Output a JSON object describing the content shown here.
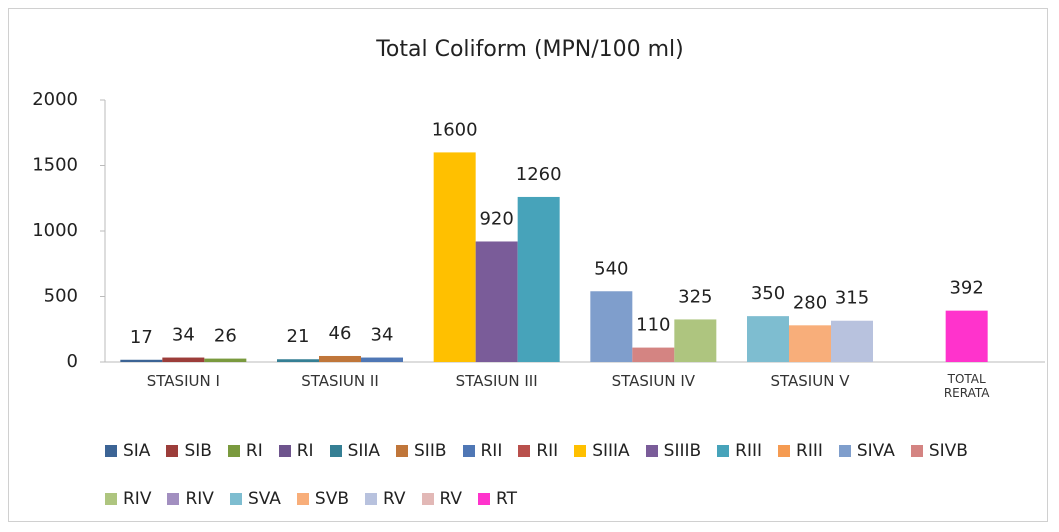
{
  "chart_data": {
    "type": "bar",
    "title": "Total Coliform (MPN/100 ml)",
    "categories": [
      "STASIUN I",
      "STASIUN II",
      "STASIUN III",
      "STASIUN IV",
      "STASIUN V",
      "TOTAL RERATA"
    ],
    "ylim": [
      0,
      2000
    ],
    "yticks": [
      0,
      500,
      1000,
      1500,
      2000
    ],
    "grid": false,
    "legend": "bottom",
    "series": [
      {
        "name": "SIA",
        "color": "#3c6495",
        "values": [
          17,
          null,
          null,
          null,
          null,
          null
        ]
      },
      {
        "name": "SIB",
        "color": "#9c3d3a",
        "values": [
          34,
          null,
          null,
          null,
          null,
          null
        ]
      },
      {
        "name": "RI",
        "color": "#7a9a3e",
        "values": [
          26,
          null,
          null,
          null,
          null,
          null
        ]
      },
      {
        "name": "RI",
        "color": "#6e548d",
        "values": [
          null,
          null,
          null,
          null,
          null,
          null
        ]
      },
      {
        "name": "SIIA",
        "color": "#357f94",
        "values": [
          null,
          21,
          null,
          null,
          null,
          null
        ]
      },
      {
        "name": "SIIB",
        "color": "#c0763a",
        "values": [
          null,
          46,
          null,
          null,
          null,
          null
        ]
      },
      {
        "name": "RII",
        "color": "#4f77b5",
        "values": [
          null,
          34,
          null,
          null,
          null,
          null
        ]
      },
      {
        "name": "RII",
        "color": "#b9504c",
        "values": [
          null,
          null,
          null,
          null,
          null,
          null
        ]
      },
      {
        "name": "SIIIA",
        "color": "#ffc000",
        "values": [
          null,
          null,
          1600,
          null,
          null,
          null
        ]
      },
      {
        "name": "SIIIB",
        "color": "#7a5c99",
        "values": [
          null,
          null,
          920,
          null,
          null,
          null
        ]
      },
      {
        "name": "RIII",
        "color": "#47a3ba",
        "values": [
          null,
          null,
          1260,
          null,
          null,
          null
        ]
      },
      {
        "name": "RIII",
        "color": "#f59b52",
        "values": [
          null,
          null,
          null,
          null,
          null,
          null
        ]
      },
      {
        "name": "SIVA",
        "color": "#7f9ecc",
        "values": [
          null,
          null,
          null,
          540,
          null,
          null
        ]
      },
      {
        "name": "SIVB",
        "color": "#d48482",
        "values": [
          null,
          null,
          null,
          110,
          null,
          null
        ]
      },
      {
        "name": "RIV",
        "color": "#aec57f",
        "values": [
          null,
          null,
          null,
          325,
          null,
          null
        ]
      },
      {
        "name": "RIV",
        "color": "#a28fc0",
        "values": [
          null,
          null,
          null,
          null,
          null,
          null
        ]
      },
      {
        "name": "SVA",
        "color": "#7ebdd0",
        "values": [
          null,
          null,
          null,
          null,
          350,
          null
        ]
      },
      {
        "name": "SVB",
        "color": "#f8ae7a",
        "values": [
          null,
          null,
          null,
          null,
          280,
          null
        ]
      },
      {
        "name": "RV",
        "color": "#b8c2de",
        "values": [
          null,
          null,
          null,
          null,
          315,
          null
        ]
      },
      {
        "name": "RV",
        "color": "#e2b8b6",
        "values": [
          null,
          null,
          null,
          null,
          null,
          null
        ]
      },
      {
        "name": "RT",
        "color": "#ff33cc",
        "values": [
          null,
          null,
          null,
          null,
          null,
          392
        ]
      }
    ]
  }
}
